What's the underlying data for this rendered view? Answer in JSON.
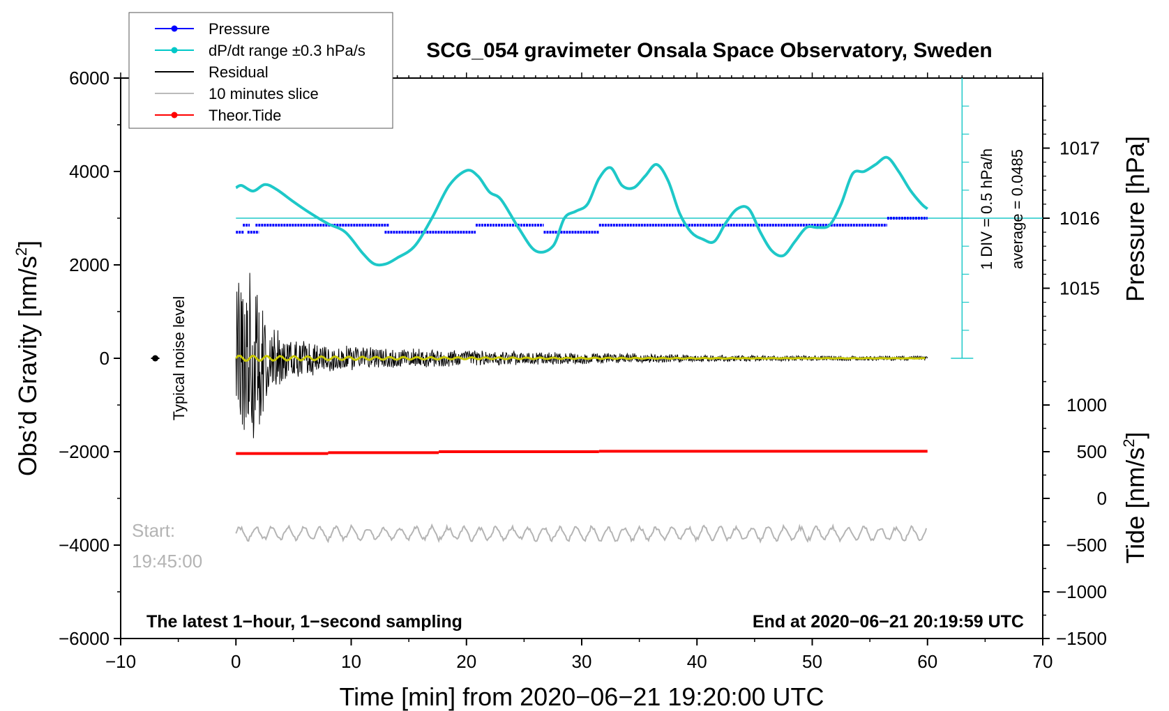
{
  "chart_data": {
    "type": "line",
    "title": "SCG_054 gravimeter Onsala Space Observatory, Sweden",
    "xlabel": "Time [min] from 2020−06−21 19:20:00 UTC",
    "ylabel": "Obs’d Gravity [nm/s",
    "ylabel_sup": "2",
    "ylabel_close": "]",
    "right_ylabel_pressure": "Pressure [hPa]",
    "right_ylabel_tide": "Tide [nm/s",
    "right_ylabel_tide_sup": "2",
    "right_ylabel_tide_close": "]",
    "xlim": [
      -10,
      70
    ],
    "ylim": [
      -6000,
      6000
    ],
    "xticks": [
      {
        "v": -10,
        "label": "−10"
      },
      {
        "v": 0,
        "label": "0"
      },
      {
        "v": 10,
        "label": "10"
      },
      {
        "v": 20,
        "label": "20"
      },
      {
        "v": 30,
        "label": "30"
      },
      {
        "v": 40,
        "label": "40"
      },
      {
        "v": 50,
        "label": "50"
      },
      {
        "v": 60,
        "label": "60"
      },
      {
        "v": 70,
        "label": "70"
      }
    ],
    "yticks": [
      {
        "v": 6000,
        "label": "6000"
      },
      {
        "v": 4000,
        "label": "4000"
      },
      {
        "v": 2000,
        "label": "2000"
      },
      {
        "v": 0,
        "label": "0"
      },
      {
        "v": -2000,
        "label": "−2000"
      },
      {
        "v": -4000,
        "label": "−4000"
      },
      {
        "v": -6000,
        "label": "−6000"
      }
    ],
    "pressure_axis": {
      "gravity_at_1016": 3000,
      "gravity_per_hpa": 1500,
      "ticks": [
        {
          "v": 1017,
          "label": "1017"
        },
        {
          "v": 1016,
          "label": "1016"
        },
        {
          "v": 1015,
          "label": "1015"
        }
      ]
    },
    "tide_axis": {
      "gravity_at_0": -3000,
      "gravity_per_unit": 2,
      "ticks": [
        {
          "v": 1000,
          "label": "1000"
        },
        {
          "v": 500,
          "label": "500"
        },
        {
          "v": 0,
          "label": "0"
        },
        {
          "v": -500,
          "label": "−500"
        },
        {
          "v": -1000,
          "label": "−1000"
        },
        {
          "v": -1500,
          "label": "−1500"
        }
      ]
    },
    "dpdt_scale": {
      "x": 63,
      "y_bottom": 0,
      "y_top": 6000,
      "minor_every": 600,
      "label_div": "1 DIV = 0.5 hPa/h",
      "label_avg": "average = 0.0485"
    },
    "legend": [
      {
        "label": "Pressure",
        "color": "#0000ff",
        "marker": true
      },
      {
        "label": "dP/dt range ±0.3 hPa/s",
        "color": "#00c8c8",
        "marker": true
      },
      {
        "label": "Residual",
        "color": "#000000",
        "marker": false
      },
      {
        "label": "10 minutes slice",
        "color": "#bbbbbb",
        "marker": false
      },
      {
        "label": "Theor.Tide",
        "color": "#ff0000",
        "marker": true
      }
    ],
    "colors": {
      "pressure": "#0000ff",
      "dpdt": "#1ec8c8",
      "residual": "#000000",
      "smoothed": "#c8c800",
      "slice": "#b4b4b4",
      "tide": "#ff0000",
      "ref_line": "#1ec8c8"
    },
    "dpdt_reference_level": 3000,
    "dpdt_series": {
      "x": [
        0,
        0.5,
        1.5,
        2.5,
        3.5,
        5,
        6.5,
        8,
        9.5,
        11,
        12,
        13,
        14,
        15.5,
        17,
        18.5,
        20,
        21,
        22,
        23,
        24.5,
        26,
        27.5,
        28.5,
        29.5,
        30.5,
        31.5,
        32.5,
        33.5,
        34.5,
        35.5,
        36.5,
        37.5,
        38.5,
        39.5,
        40.5,
        41.5,
        42.5,
        43.5,
        44.5,
        45.5,
        46.5,
        47.5,
        48.5,
        49.5,
        50.5,
        51.5,
        52.5,
        53.5,
        54.5,
        55.5,
        56.5,
        57.5,
        58.5,
        59.5,
        60
      ],
      "y": [
        3650,
        3700,
        3580,
        3720,
        3620,
        3350,
        3100,
        2880,
        2700,
        2250,
        2020,
        2020,
        2150,
        2400,
        3000,
        3700,
        4020,
        3900,
        3560,
        3400,
        2800,
        2300,
        2400,
        3000,
        3150,
        3300,
        3850,
        4080,
        3700,
        3650,
        3900,
        4150,
        3800,
        3100,
        2700,
        2550,
        2500,
        2900,
        3200,
        3200,
        2700,
        2300,
        2200,
        2500,
        2800,
        2800,
        2850,
        3300,
        3950,
        4000,
        4150,
        4300,
        4000,
        3600,
        3300,
        3200
      ]
    },
    "pressure_segments": [
      {
        "x0": 0,
        "x1": 0.7,
        "hpa": 1015.8
      },
      {
        "x0": 0.6,
        "x1": 1.2,
        "hpa": 1015.9
      },
      {
        "x0": 1.0,
        "x1": 2.0,
        "hpa": 1015.8
      },
      {
        "x0": 1.7,
        "x1": 13.3,
        "hpa": 1015.9
      },
      {
        "x0": 12.9,
        "x1": 20.8,
        "hpa": 1015.8
      },
      {
        "x0": 20.8,
        "x1": 26.7,
        "hpa": 1015.9
      },
      {
        "x0": 26.7,
        "x1": 31.5,
        "hpa": 1015.8
      },
      {
        "x0": 31.5,
        "x1": 56.5,
        "hpa": 1015.9
      },
      {
        "x0": 56.5,
        "x1": 60,
        "hpa": 1016.0
      }
    ],
    "tide_steps": [
      {
        "x0": 0,
        "x1": 8,
        "tide": 480
      },
      {
        "x0": 8,
        "x1": 17.6,
        "tide": 490
      },
      {
        "x0": 17.6,
        "x1": 31.5,
        "tide": 500
      },
      {
        "x0": 31.5,
        "x1": 60,
        "tide": 505
      }
    ],
    "residual_envelope": {
      "x": [
        0,
        1,
        2,
        3,
        5,
        10,
        20,
        30,
        40,
        50,
        60
      ],
      "amp": [
        1900,
        1950,
        1700,
        700,
        450,
        260,
        170,
        130,
        80,
        60,
        50
      ]
    },
    "slice_baseline": -3750,
    "slice_amplitude": 180,
    "noise_level": {
      "x": -7,
      "y": 0,
      "label": "Typical noise level"
    },
    "annotations": {
      "start_label": "Start:",
      "start_time": "19:45:00",
      "bottom_left": "The latest 1−hour, 1−second sampling",
      "bottom_right": "End at 2020−06−21 20:19:59 UTC"
    }
  }
}
